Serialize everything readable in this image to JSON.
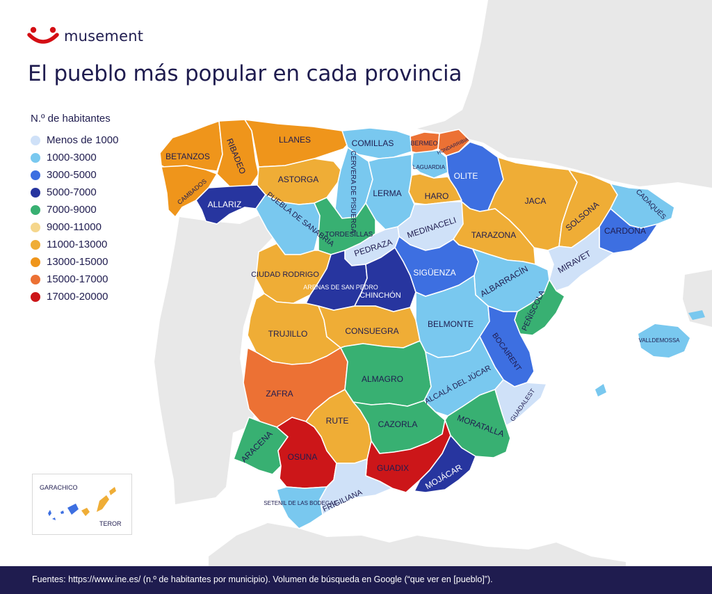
{
  "brand": {
    "name": "musement"
  },
  "title": "El pueblo más popular en cada provincia",
  "legend": {
    "title": "N.º de habitantes",
    "items": [
      {
        "label": "Menos de 1000",
        "color": "#cfe1f8"
      },
      {
        "label": "1000-3000",
        "color": "#79c8ef"
      },
      {
        "label": "3000-5000",
        "color": "#3d6fe1"
      },
      {
        "label": "5000-7000",
        "color": "#27359f"
      },
      {
        "label": "7000-9000",
        "color": "#38b072"
      },
      {
        "label": "9000-11000",
        "color": "#f5d68c"
      },
      {
        "label": "11000-13000",
        "color": "#efad36"
      },
      {
        "label": "13000-15000",
        "color": "#ef951b"
      },
      {
        "label": "15000-17000",
        "color": "#ec7134"
      },
      {
        "label": "17000-20000",
        "color": "#cc1619"
      }
    ]
  },
  "towns": [
    {
      "name": "BETANZOS",
      "category": "13000-15000"
    },
    {
      "name": "RIBADEO",
      "category": "13000-15000"
    },
    {
      "name": "LLANES",
      "category": "13000-15000"
    },
    {
      "name": "COMILLAS",
      "category": "1000-3000"
    },
    {
      "name": "BERMEO",
      "category": "15000-17000"
    },
    {
      "name": "HONDARRIBIA",
      "category": "15000-17000"
    },
    {
      "name": "CAMBADOS",
      "category": "13000-15000"
    },
    {
      "name": "ALLARIZ",
      "category": "5000-7000"
    },
    {
      "name": "ASTORGA",
      "category": "11000-13000"
    },
    {
      "name": "CERVERA DE PISUERGA",
      "category": "1000-3000"
    },
    {
      "name": "LERMA",
      "category": "1000-3000"
    },
    {
      "name": "LAGUARDIA",
      "category": "1000-3000"
    },
    {
      "name": "OLITE",
      "category": "3000-5000"
    },
    {
      "name": "HARO",
      "category": "11000-13000"
    },
    {
      "name": "JACA",
      "category": "11000-13000"
    },
    {
      "name": "SOLSONA",
      "category": "11000-13000"
    },
    {
      "name": "CADAQUÉS",
      "category": "1000-3000"
    },
    {
      "name": "CARDONA",
      "category": "3000-5000"
    },
    {
      "name": "PUEBLA DE SANABRIA",
      "category": "1000-3000"
    },
    {
      "name": "TORDESILLAS",
      "category": "7000-9000"
    },
    {
      "name": "MEDINACELI",
      "category": "Menos de 1000"
    },
    {
      "name": "TARAZONA",
      "category": "11000-13000"
    },
    {
      "name": "PEDRAZA",
      "category": "Menos de 1000"
    },
    {
      "name": "MIRAVET",
      "category": "Menos de 1000"
    },
    {
      "name": "CIUDAD RODRIGO",
      "category": "11000-13000"
    },
    {
      "name": "ARENAS DE SAN PEDRO",
      "category": "5000-7000"
    },
    {
      "name": "CHINCHÓN",
      "category": "5000-7000"
    },
    {
      "name": "SIGÜENZA",
      "category": "3000-5000"
    },
    {
      "name": "ALBARRACÍN",
      "category": "1000-3000"
    },
    {
      "name": "PEÑÍSCOLA",
      "category": "7000-9000"
    },
    {
      "name": "TRUJILLO",
      "category": "11000-13000"
    },
    {
      "name": "CONSUEGRA",
      "category": "11000-13000"
    },
    {
      "name": "BELMONTE",
      "category": "1000-3000"
    },
    {
      "name": "VALLDEMOSSA",
      "category": "1000-3000"
    },
    {
      "name": "BOCAIRENT",
      "category": "3000-5000"
    },
    {
      "name": "ALMAGRO",
      "category": "7000-9000"
    },
    {
      "name": "ALCALÁ DEL JÚCAR",
      "category": "1000-3000"
    },
    {
      "name": "ZAFRA",
      "category": "15000-17000"
    },
    {
      "name": "GUADALEST",
      "category": "Menos de 1000"
    },
    {
      "name": "RUTE",
      "category": "11000-13000"
    },
    {
      "name": "CAZORLA",
      "category": "7000-9000"
    },
    {
      "name": "MORATALLA",
      "category": "7000-9000"
    },
    {
      "name": "ARACENA",
      "category": "7000-9000"
    },
    {
      "name": "OSUNA",
      "category": "17000-20000"
    },
    {
      "name": "GUADIX",
      "category": "17000-20000"
    },
    {
      "name": "MOJÁCAR",
      "category": "5000-7000"
    },
    {
      "name": "FRIGILIANA",
      "category": "1000-3000"
    },
    {
      "name": "SETENIL DE LAS BODEGAS",
      "category": "1000-3000"
    },
    {
      "name": "GARACHICO",
      "category": "3000-5000"
    },
    {
      "name": "TEROR",
      "category": "11000-13000"
    }
  ],
  "footer": {
    "text": "Fuentes:  https://www.ine.es/ (n.º de habitantes por municipio). Volumen de búsqueda en Google (“que ver en [pueblo]”)."
  }
}
